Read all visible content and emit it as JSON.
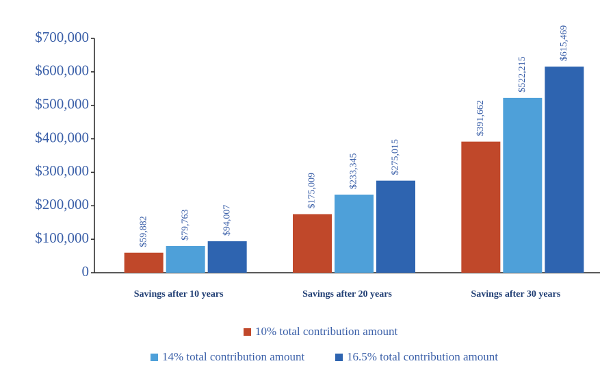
{
  "chart_data": {
    "type": "bar",
    "categories": [
      "Savings after 10 years",
      "Savings after 20 years",
      "Savings after 30 years"
    ],
    "series": [
      {
        "name": "10% total contribution amount",
        "color": "#c0482a",
        "values": [
          59882,
          175009,
          391662
        ],
        "value_labels": [
          "$59,882",
          "$175,009",
          "$391,662"
        ]
      },
      {
        "name": "14% total contribution amount",
        "color": "#4ea0d9",
        "values": [
          79763,
          233345,
          522215
        ],
        "value_labels": [
          "$79,763",
          "$233,345",
          "$522,215"
        ]
      },
      {
        "name": "16.5% total contribution amount",
        "color": "#2e64b0",
        "values": [
          94007,
          275015,
          615469
        ],
        "value_labels": [
          "$94,007",
          "$275,015",
          "$615,469"
        ]
      }
    ],
    "ylim": [
      0,
      700000
    ],
    "yticks": [
      0,
      {
        "value": 100000,
        "label": "$100,000"
      },
      {
        "value": 200000,
        "label": "$200,000"
      },
      {
        "value": 300000,
        "label": "$300,000"
      },
      {
        "value": 400000,
        "label": "$400,000"
      },
      {
        "value": 500000,
        "label": "$500,000"
      },
      {
        "value": 600000,
        "label": "$600,000"
      },
      {
        "value": 700000,
        "label": "$700,000"
      }
    ],
    "grid": false,
    "legend": "bottom"
  }
}
